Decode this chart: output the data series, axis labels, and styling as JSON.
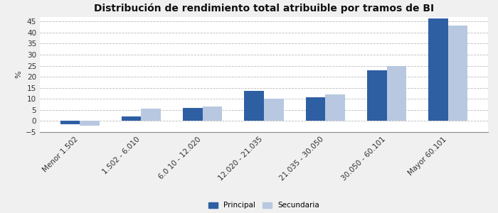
{
  "title": "Distribución de rendimiento total atribuible por tramos de BI",
  "categories": [
    "Menor 1.502",
    "1.502 - 6.010",
    "6.0 10 - 12.020",
    "12.020 - 21.035",
    "21.035 - 30.050",
    "30.050 - 60.101",
    "Mayor 60.101"
  ],
  "principal": [
    -1.5,
    2.0,
    6.0,
    13.5,
    10.7,
    23.0,
    46.5
  ],
  "secundaria": [
    -2.0,
    5.7,
    6.5,
    10.0,
    12.0,
    25.0,
    43.0
  ],
  "principal_color": "#2E5FA3",
  "secundaria_color": "#B8C8E0",
  "ylabel": "%",
  "ylim": [
    -5,
    47
  ],
  "yticks": [
    -5,
    0,
    5,
    10,
    15,
    20,
    25,
    30,
    35,
    40,
    45
  ],
  "background_color": "#F0F0F0",
  "plot_bg_color": "#FFFFFF",
  "grid_color": "#BBBBBB",
  "legend_labels": [
    "Principal",
    "Secundaria"
  ],
  "title_fontsize": 10,
  "axis_fontsize": 8,
  "tick_fontsize": 7.5
}
